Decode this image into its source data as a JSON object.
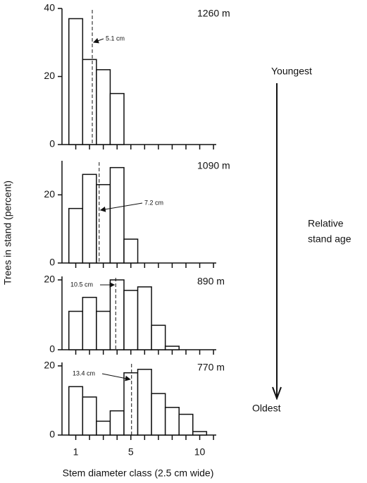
{
  "chart_data": [
    {
      "type": "bar",
      "title": "1260 m",
      "x": [
        1,
        2,
        3,
        4
      ],
      "values": [
        37,
        25,
        22,
        15
      ],
      "ylim": [
        0,
        40
      ],
      "yticks": [
        0,
        20,
        40
      ],
      "mean": {
        "x": 2.2,
        "label": "5.1 cm"
      }
    },
    {
      "type": "bar",
      "title": "1090 m",
      "x": [
        1,
        2,
        3,
        4,
        5
      ],
      "values": [
        16,
        26,
        23,
        28,
        7
      ],
      "ylim": [
        0,
        30
      ],
      "yticks": [
        0,
        20
      ],
      "mean": {
        "x": 2.7,
        "label": "7.2 cm"
      }
    },
    {
      "type": "bar",
      "title": "890 m",
      "x": [
        1,
        2,
        3,
        4,
        5,
        6,
        7,
        8
      ],
      "values": [
        11,
        15,
        11,
        20,
        17,
        18,
        7,
        1
      ],
      "ylim": [
        0,
        21
      ],
      "yticks": [
        0,
        20
      ],
      "mean": {
        "x": 3.9,
        "label": "10.5 cm"
      }
    },
    {
      "type": "bar",
      "title": "770 m",
      "x": [
        1,
        2,
        3,
        4,
        5,
        6,
        7,
        8,
        9,
        10
      ],
      "values": [
        14,
        11,
        4,
        7,
        18,
        19,
        12,
        8,
        6,
        1
      ],
      "ylim": [
        0,
        21
      ],
      "yticks": [
        0,
        20
      ],
      "mean": {
        "x": 5.05,
        "label": "13.4 cm"
      }
    }
  ],
  "x_axis": {
    "label": "Stem diameter class (2.5 cm wide)",
    "xlim": [
      0,
      11.2
    ],
    "xticks": [
      1,
      5,
      10
    ],
    "minor_xticks": [
      2,
      3,
      4,
      6,
      7,
      8,
      9,
      11
    ]
  },
  "y_label": "Trees in stand (percent)",
  "age": {
    "top": "Youngest",
    "bottom": "Oldest",
    "label_line1": "Relative",
    "label_line2": "stand age"
  }
}
